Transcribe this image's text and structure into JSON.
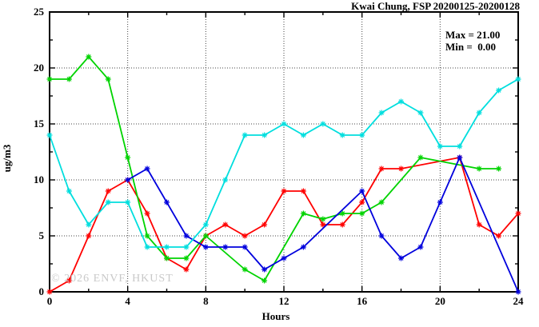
{
  "chart": {
    "title": "Kwai Chung, FSP 20200125-20200128",
    "stats": {
      "max": "Max = 21.00",
      "min": "Min =  0.00"
    },
    "watermark": "© 2026 ENVF, HKUST",
    "xlabel": "Hours",
    "ylabel": "ug/m3"
  },
  "chart_data": {
    "type": "line",
    "title": "Kwai Chung, FSP 20200125-20200128",
    "xlabel": "Hours",
    "ylabel": "ug/m3",
    "xlim": [
      0,
      24
    ],
    "ylim": [
      0,
      25
    ],
    "x_major_ticks": [
      0,
      4,
      8,
      12,
      16,
      20,
      24
    ],
    "x_minor_tick_step": 2,
    "y_major_ticks": [
      0,
      5,
      10,
      15,
      20,
      25
    ],
    "y_minor_tick_step": 2.5,
    "grid_x": [
      4,
      8,
      12,
      16,
      20
    ],
    "grid_y": [
      5,
      10,
      15,
      20
    ],
    "legend_position": "none",
    "annotations": {
      "max": 21.0,
      "min": 0.0
    },
    "x": [
      0,
      1,
      2,
      3,
      4,
      5,
      6,
      7,
      8,
      9,
      10,
      11,
      12,
      13,
      14,
      15,
      16,
      17,
      18,
      19,
      20,
      21,
      22,
      23,
      24
    ],
    "series": [
      {
        "name": "series-red",
        "color": "#ff0000",
        "values": [
          0,
          1,
          5,
          9,
          10,
          7,
          3,
          2,
          5,
          6,
          5,
          6,
          9,
          9,
          6,
          6,
          8,
          11,
          11,
          null,
          null,
          12,
          6,
          5,
          7
        ]
      },
      {
        "name": "series-green",
        "color": "#00d300",
        "values": [
          19,
          19,
          21,
          19,
          12,
          5,
          3,
          3,
          5,
          null,
          2,
          1,
          null,
          7,
          6.5,
          7,
          7,
          8,
          null,
          12,
          null,
          null,
          11,
          11,
          null
        ]
      },
      {
        "name": "series-blue",
        "color": "#0000dd",
        "values": [
          null,
          null,
          null,
          null,
          10,
          11,
          8,
          5,
          4,
          4,
          4,
          2,
          3,
          4,
          null,
          null,
          9,
          5,
          3,
          4,
          8,
          12,
          null,
          null,
          0
        ]
      },
      {
        "name": "series-cyan",
        "color": "#00dede",
        "values": [
          14,
          9,
          6,
          8,
          8,
          4,
          4,
          4,
          6,
          10,
          14,
          14,
          15,
          14,
          15,
          14,
          14,
          16,
          17,
          16,
          13,
          13,
          16,
          18,
          19
        ]
      }
    ]
  }
}
